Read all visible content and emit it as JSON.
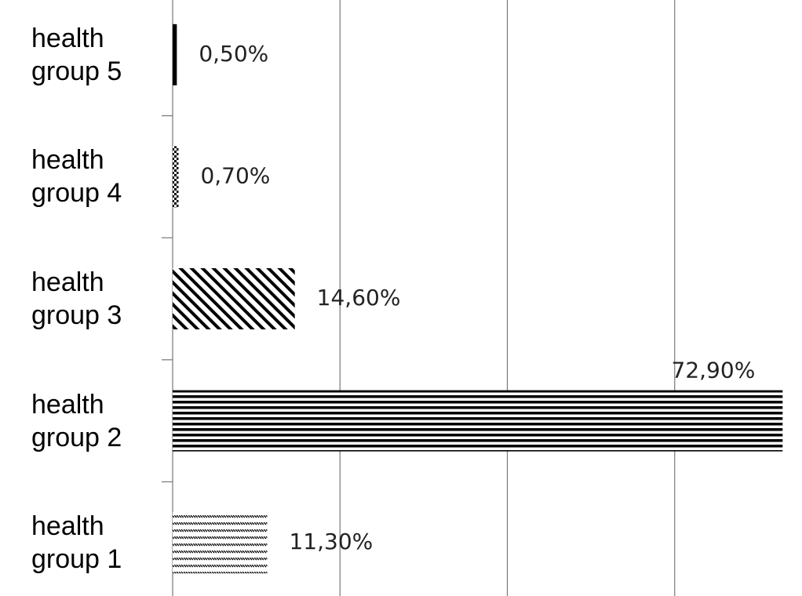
{
  "chart_data": {
    "type": "barh",
    "categories": [
      "health group 5",
      "health group 4",
      "health group 3",
      "health group 2",
      "health group 1"
    ],
    "values": [
      0.5,
      0.7,
      14.6,
      72.9,
      11.3
    ],
    "value_labels": [
      "0,50%",
      "0,70%",
      "14,60%",
      "72,90%",
      "11,30%"
    ],
    "fills": [
      "solid",
      "dots",
      "diagonal",
      "horizontal",
      "hatch"
    ],
    "xlim": [
      0,
      75
    ],
    "xticks": [
      20,
      40,
      60
    ],
    "grid": true
  }
}
